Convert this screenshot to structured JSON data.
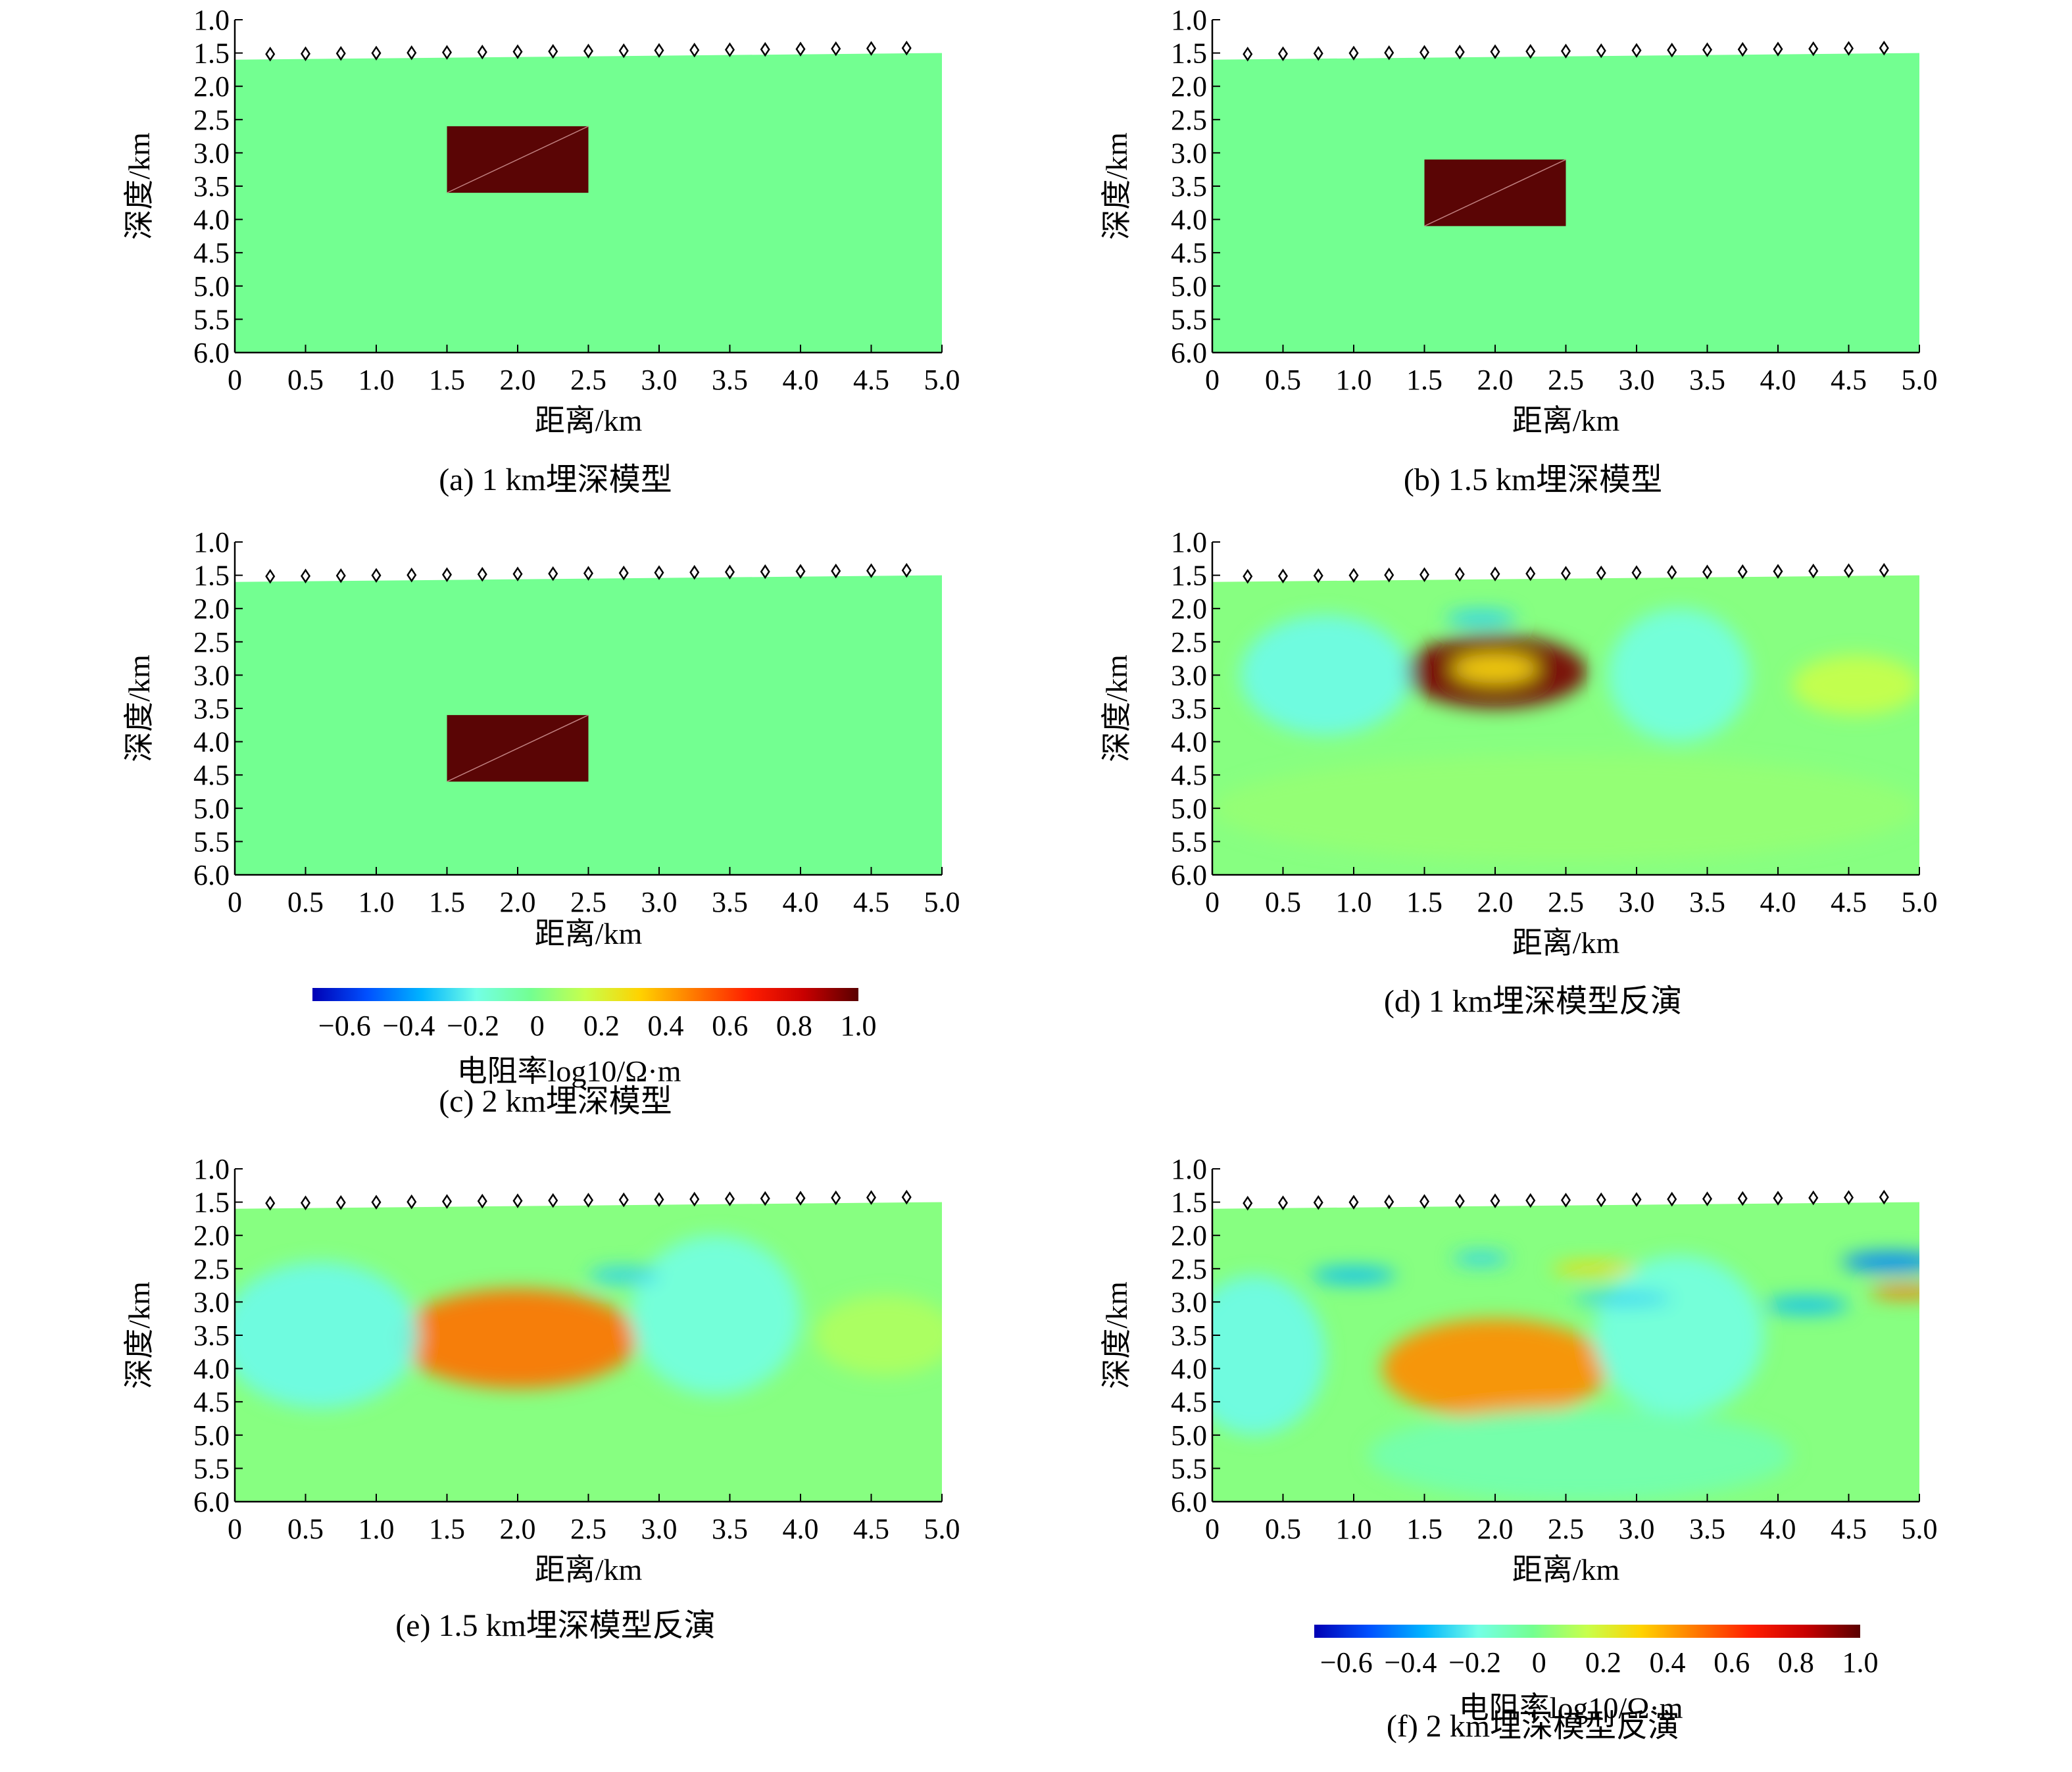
{
  "colors": {
    "background_model": "#73ff91",
    "block": "#5a0505",
    "colormap": [
      "#0000b4",
      "#0050ff",
      "#00b4ff",
      "#73ffe6",
      "#73ff91",
      "#c8ff4b",
      "#ffd200",
      "#ff7800",
      "#ff1e00",
      "#c80000",
      "#5a0000"
    ]
  },
  "chart_data": [
    {
      "id": "a",
      "type": "heatmap",
      "kind": "model",
      "caption": "(a) 1 km埋深模型",
      "xlabel": "距离/km",
      "ylabel": "深度/km",
      "xlim": [
        0,
        5.0
      ],
      "ylim": [
        1.0,
        6.0
      ],
      "xticks": [
        "0",
        "0.5",
        "1.0",
        "1.5",
        "2.0",
        "2.5",
        "3.0",
        "3.5",
        "4.0",
        "4.5",
        "5.0"
      ],
      "yticks": [
        "1.0",
        "1.5",
        "2.0",
        "2.5",
        "3.0",
        "3.5",
        "4.0",
        "4.5",
        "5.0",
        "5.5",
        "6.0"
      ],
      "background_value": 0.1,
      "block": {
        "x": [
          1.5,
          2.5
        ],
        "depth": [
          2.6,
          3.6
        ],
        "value": 1.0
      }
    },
    {
      "id": "b",
      "type": "heatmap",
      "kind": "model",
      "caption": "(b) 1.5 km埋深模型",
      "xlabel": "距离/km",
      "ylabel": "深度/km",
      "xlim": [
        0,
        5.0
      ],
      "ylim": [
        1.0,
        6.0
      ],
      "xticks": [
        "0",
        "0.5",
        "1.0",
        "1.5",
        "2.0",
        "2.5",
        "3.0",
        "3.5",
        "4.0",
        "4.5",
        "5.0"
      ],
      "yticks": [
        "1.0",
        "1.5",
        "2.0",
        "2.5",
        "3.0",
        "3.5",
        "4.0",
        "4.5",
        "5.0",
        "5.5",
        "6.0"
      ],
      "background_value": 0.1,
      "block": {
        "x": [
          1.5,
          2.5
        ],
        "depth": [
          3.1,
          4.1
        ],
        "value": 1.0
      }
    },
    {
      "id": "c",
      "type": "heatmap",
      "kind": "model",
      "caption": "(c) 2 km埋深模型",
      "xlabel": "距离/km",
      "ylabel": "深度/km",
      "xlim": [
        0,
        5.0
      ],
      "ylim": [
        1.0,
        6.0
      ],
      "xticks": [
        "0",
        "0.5",
        "1.0",
        "1.5",
        "2.0",
        "2.5",
        "3.0",
        "3.5",
        "4.0",
        "4.5",
        "5.0"
      ],
      "yticks": [
        "1.0",
        "1.5",
        "2.0",
        "2.5",
        "3.0",
        "3.5",
        "4.0",
        "4.5",
        "5.0",
        "5.5",
        "6.0"
      ],
      "background_value": 0.1,
      "block": {
        "x": [
          1.5,
          2.5
        ],
        "depth": [
          3.6,
          4.6
        ],
        "value": 1.0
      }
    },
    {
      "id": "d",
      "type": "heatmap",
      "kind": "inversion",
      "caption": "(d) 1 km埋深模型反演",
      "xlabel": "距离/km",
      "ylabel": "深度/km",
      "xlim": [
        0,
        5.0
      ],
      "ylim": [
        1.0,
        6.0
      ],
      "xticks": [
        "0",
        "0.5",
        "1.0",
        "1.5",
        "2.0",
        "2.5",
        "3.0",
        "3.5",
        "4.0",
        "4.5",
        "5.0"
      ],
      "yticks": [
        "1.0",
        "1.5",
        "2.0",
        "2.5",
        "3.0",
        "3.5",
        "4.0",
        "4.5",
        "5.0",
        "5.5",
        "6.0"
      ],
      "anomalies": [
        {
          "x": 2.0,
          "depth": 2.95,
          "rx": 0.65,
          "rz": 0.55,
          "value": 0.95
        },
        {
          "x": 2.0,
          "depth": 2.9,
          "rx": 0.3,
          "rz": 0.22,
          "value": 0.3
        },
        {
          "x": 0.8,
          "depth": 3.0,
          "rx": 0.6,
          "rz": 0.9,
          "value": -0.2
        },
        {
          "x": 3.3,
          "depth": 3.0,
          "rx": 0.5,
          "rz": 1.0,
          "value": -0.18
        },
        {
          "x": 1.9,
          "depth": 2.15,
          "rx": 0.25,
          "rz": 0.12,
          "value": -0.3
        },
        {
          "x": 4.55,
          "depth": 3.15,
          "rx": 0.45,
          "rz": 0.45,
          "value": 0.15
        },
        {
          "x": 2.5,
          "depth": 5.0,
          "rx": 2.5,
          "rz": 0.8,
          "value": 0.05
        }
      ]
    },
    {
      "id": "e",
      "type": "heatmap",
      "kind": "inversion",
      "caption": "(e) 1.5 km埋深模型反演",
      "xlabel": "距离/km",
      "ylabel": "深度/km",
      "xlim": [
        0,
        5.0
      ],
      "ylim": [
        1.0,
        6.0
      ],
      "xticks": [
        "0",
        "0.5",
        "1.0",
        "1.5",
        "2.0",
        "2.5",
        "3.0",
        "3.5",
        "4.0",
        "4.5",
        "5.0"
      ],
      "yticks": [
        "1.0",
        "1.5",
        "2.0",
        "2.5",
        "3.0",
        "3.5",
        "4.0",
        "4.5",
        "5.0",
        "5.5",
        "6.0"
      ],
      "anomalies": [
        {
          "x": 2.0,
          "depth": 3.55,
          "rx": 0.85,
          "rz": 0.75,
          "value": 0.5
        },
        {
          "x": 0.6,
          "depth": 3.5,
          "rx": 0.7,
          "rz": 1.1,
          "value": -0.2
        },
        {
          "x": 3.4,
          "depth": 3.2,
          "rx": 0.6,
          "rz": 1.2,
          "value": -0.18
        },
        {
          "x": 2.75,
          "depth": 2.6,
          "rx": 0.25,
          "rz": 0.12,
          "value": -0.3
        },
        {
          "x": 4.6,
          "depth": 3.5,
          "rx": 0.5,
          "rz": 0.6,
          "value": 0.1
        }
      ]
    },
    {
      "id": "f",
      "type": "heatmap",
      "kind": "inversion",
      "caption": "(f) 2 km埋深模型反演",
      "xlabel": "距离/km",
      "ylabel": "深度/km",
      "xlim": [
        0,
        5.0
      ],
      "ylim": [
        1.0,
        6.0
      ],
      "xticks": [
        "0",
        "0.5",
        "1.0",
        "1.5",
        "2.0",
        "2.5",
        "3.0",
        "3.5",
        "4.0",
        "4.5",
        "5.0"
      ],
      "yticks": [
        "1.0",
        "1.5",
        "2.0",
        "2.5",
        "3.0",
        "3.5",
        "4.0",
        "4.5",
        "5.0",
        "5.5",
        "6.0"
      ],
      "anomalies": [
        {
          "x": 2.0,
          "depth": 4.0,
          "rx": 0.8,
          "rz": 0.75,
          "value": 0.45
        },
        {
          "x": 0.3,
          "depth": 3.8,
          "rx": 0.5,
          "rz": 1.2,
          "value": -0.2
        },
        {
          "x": 3.3,
          "depth": 3.5,
          "rx": 0.6,
          "rz": 1.2,
          "value": -0.18
        },
        {
          "x": 1.0,
          "depth": 2.6,
          "rx": 0.3,
          "rz": 0.12,
          "value": -0.35
        },
        {
          "x": 1.9,
          "depth": 2.35,
          "rx": 0.2,
          "rz": 0.1,
          "value": -0.3
        },
        {
          "x": 2.9,
          "depth": 2.95,
          "rx": 0.35,
          "rz": 0.1,
          "value": -0.3
        },
        {
          "x": 4.8,
          "depth": 2.4,
          "rx": 0.35,
          "rz": 0.15,
          "value": -0.45
        },
        {
          "x": 4.2,
          "depth": 3.05,
          "rx": 0.3,
          "rz": 0.12,
          "value": -0.35
        },
        {
          "x": 4.9,
          "depth": 2.85,
          "rx": 0.25,
          "rz": 0.1,
          "value": 0.5
        },
        {
          "x": 2.7,
          "depth": 2.5,
          "rx": 0.3,
          "rz": 0.1,
          "value": 0.3
        },
        {
          "x": 2.6,
          "depth": 5.3,
          "rx": 1.5,
          "rz": 0.7,
          "value": -0.08
        }
      ]
    }
  ],
  "colorbars": [
    {
      "id": "cb1",
      "range": [
        -0.7,
        1.0
      ],
      "ticks": [
        "−0.6",
        "−0.4",
        "−0.2",
        "0",
        "0.2",
        "0.4",
        "0.6",
        "0.8",
        "1.0"
      ],
      "title": "电阻率log10/Ω·m"
    },
    {
      "id": "cb2",
      "range": [
        -0.7,
        1.0
      ],
      "ticks": [
        "−0.6",
        "−0.4",
        "−0.2",
        "0",
        "0.2",
        "0.4",
        "0.6",
        "0.8",
        "1.0"
      ],
      "title": "电阻率log10/Ω·m"
    }
  ],
  "stations": {
    "x": [
      0.25,
      0.5,
      0.75,
      1.0,
      1.25,
      1.5,
      1.75,
      2.0,
      2.25,
      2.5,
      2.75,
      3.0,
      3.25,
      3.5,
      3.75,
      4.0,
      4.25,
      4.5,
      4.75
    ],
    "surface_left": 1.6,
    "surface_right": 1.5
  }
}
